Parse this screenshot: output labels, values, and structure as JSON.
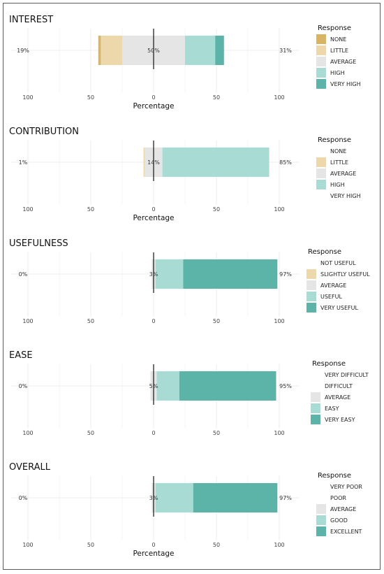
{
  "palette": {
    "neg2": "#d8b464",
    "neg1": "#ecd8aa",
    "neutral": "#e5e5e5",
    "pos1": "#a9dbd5",
    "pos2": "#5cb4a9",
    "axis": "#111111",
    "grid": "#ececec"
  },
  "chart_data": [
    {
      "type": "bar",
      "orientation": "horizontal-diverging",
      "title": "INTEREST",
      "xlabel": "Percentage",
      "xticks": [
        "100",
        "50",
        "0",
        "50",
        "100"
      ],
      "xlim": [
        -100,
        100
      ],
      "grid": true,
      "legend_title": "Response",
      "legend_position": "right",
      "categories": [
        "NONE",
        "LITTLE",
        "AVERAGE",
        "HIGH",
        "VERY HIGH"
      ],
      "values": [
        2,
        17,
        50,
        24,
        7
      ],
      "legend_swatch": [
        true,
        true,
        true,
        true,
        true
      ],
      "left_pct": "19%",
      "center_pct": "50%",
      "right_pct": "31%"
    },
    {
      "type": "bar",
      "orientation": "horizontal-diverging",
      "title": "CONTRIBUTION",
      "xlabel": "Percentage",
      "xticks": [
        "100",
        "50",
        "0",
        "50",
        "100"
      ],
      "xlim": [
        -100,
        100
      ],
      "grid": true,
      "legend_title": "Response",
      "legend_position": "right",
      "categories": [
        "NONE",
        "LITTLE",
        "AVERAGE",
        "HIGH",
        "VERY HIGH"
      ],
      "values": [
        0,
        1,
        14,
        85,
        0
      ],
      "legend_swatch": [
        false,
        true,
        true,
        true,
        false
      ],
      "left_pct": "1%",
      "center_pct": "14%",
      "right_pct": "85%"
    },
    {
      "type": "bar",
      "orientation": "horizontal-diverging",
      "title": "USEFULNESS",
      "xlabel": "",
      "xticks": [
        "100",
        "50",
        "0",
        "50",
        "100"
      ],
      "xlim": [
        -100,
        100
      ],
      "grid": true,
      "legend_title": "Response",
      "legend_position": "right",
      "categories": [
        "NOT USEFUL",
        "SLIGHTLY USEFUL",
        "AVERAGE",
        "USEFUL",
        "VERY USEFUL"
      ],
      "values": [
        0,
        0,
        3,
        22,
        75
      ],
      "legend_swatch": [
        false,
        true,
        true,
        true,
        true
      ],
      "left_pct": "0%",
      "center_pct": "3%",
      "right_pct": "97%"
    },
    {
      "type": "bar",
      "orientation": "horizontal-diverging",
      "title": "EASE",
      "xlabel": "",
      "xticks": [
        "100",
        "50",
        "0",
        "50",
        "100"
      ],
      "xlim": [
        -100,
        100
      ],
      "grid": true,
      "legend_title": "Response",
      "legend_position": "right",
      "categories": [
        "VERY DIFFICULT",
        "DIFFICULT",
        "AVERAGE",
        "EASY",
        "VERY EASY"
      ],
      "values": [
        0,
        0,
        5,
        18,
        77
      ],
      "legend_swatch": [
        false,
        false,
        true,
        true,
        true
      ],
      "left_pct": "0%",
      "center_pct": "5%",
      "right_pct": "95%"
    },
    {
      "type": "bar",
      "orientation": "horizontal-diverging",
      "title": "OVERALL",
      "xlabel": "Percentage",
      "xticks": [
        "100",
        "50",
        "0",
        "50",
        "100"
      ],
      "xlim": [
        -100,
        100
      ],
      "grid": true,
      "legend_title": "Response",
      "legend_position": "right",
      "categories": [
        "VERY POOR",
        "POOR",
        "AVERAGE",
        "GOOD",
        "EXCELLENT"
      ],
      "values": [
        0,
        0,
        3,
        30,
        67
      ],
      "legend_swatch": [
        false,
        false,
        true,
        true,
        true
      ],
      "left_pct": "0%",
      "center_pct": "3%",
      "right_pct": "97%"
    }
  ]
}
